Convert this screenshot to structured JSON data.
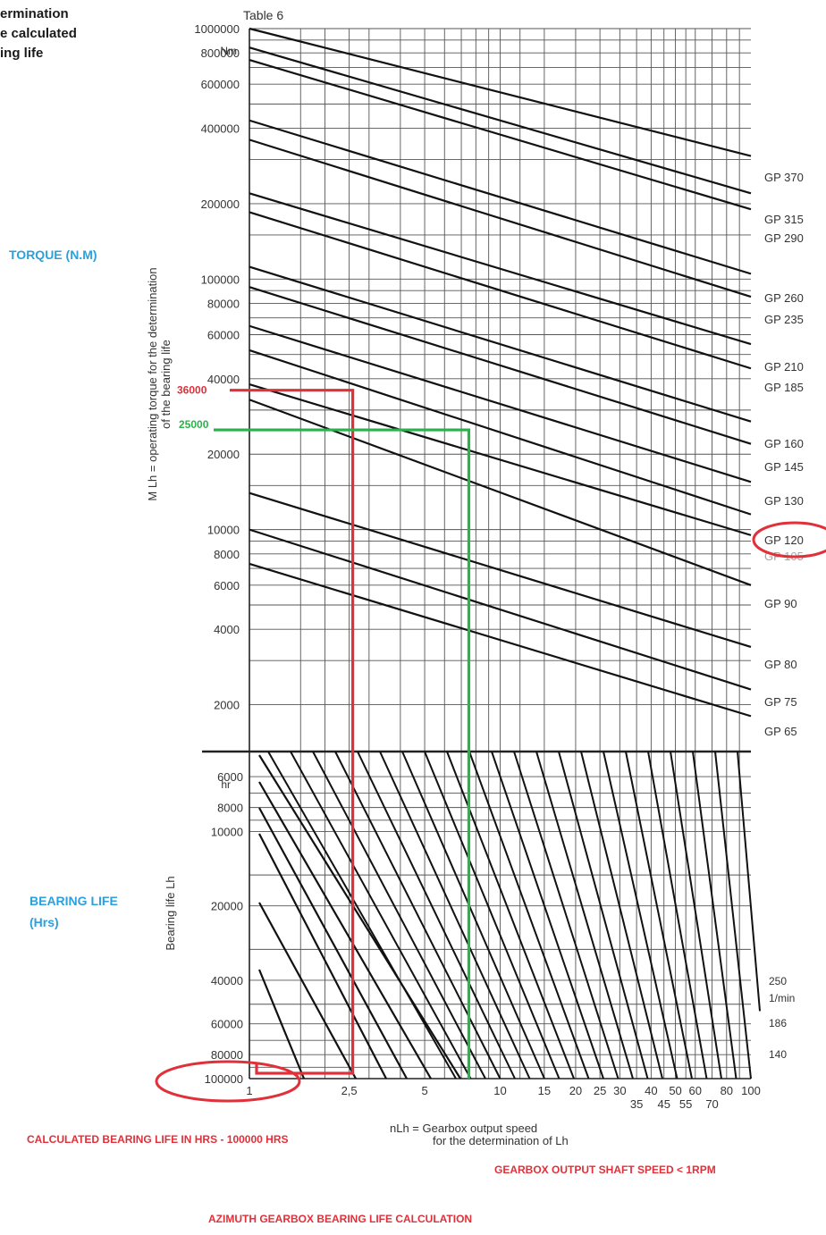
{
  "header_lines": [
    "ermination",
    "e calculated",
    "ing life"
  ],
  "chart_data": {
    "type": "line",
    "table_label": "Table 6",
    "top_panel": {
      "ylabel_lines": [
        "M Lh = operating torque for the determination",
        "of the bearing life"
      ],
      "y_unit": "Nm",
      "y_scale": "log",
      "ylim": [
        1300,
        1000000
      ],
      "yticks": [
        "1000000",
        "800000",
        "600000",
        "400000",
        "200000",
        "100000",
        "80000",
        "60000",
        "40000",
        "20000",
        "10000",
        "8000",
        "6000",
        "4000",
        "2000"
      ],
      "series": [
        "GP 370",
        "GP 315",
        "GP 290",
        "GP 260",
        "GP 235",
        "GP 210",
        "GP 185",
        "GP 160",
        "GP 145",
        "GP 130",
        "GP 120",
        "GP 105",
        "GP 90",
        "GP 80",
        "GP 75",
        "GP 65"
      ]
    },
    "bottom_panel": {
      "ylabel": "Bearing life Lh",
      "y_unit": "hr",
      "yticks": [
        "6000",
        "8000",
        "10000",
        "20000",
        "40000",
        "60000",
        "80000",
        "100000"
      ],
      "xlabel_lines": [
        "nLh = Gearbox output speed",
        "for the determination of Lh"
      ],
      "xticks_row1": [
        "1",
        "2,5",
        "5",
        "10",
        "15",
        "20",
        "25",
        "30",
        "40",
        "50",
        "60",
        "80",
        "100"
      ],
      "xticks_row2": [
        "35",
        "45",
        "55",
        "70"
      ],
      "speed_labels": [
        "250",
        "1/min",
        "186",
        "140"
      ]
    },
    "annotations": {
      "red_torque": "36000",
      "green_torque": "25000",
      "red_speed": 2.5,
      "green_speed": 7.5,
      "red_life_hours": 100000,
      "circled_model": "GP 120",
      "circled_life": "100000"
    }
  },
  "side_labels": {
    "torque": "TORQUE (N.M)",
    "bearing_line1": "BEARING LIFE",
    "bearing_line2": "(Hrs)"
  },
  "notes": {
    "calculated": "CALCULATED BEARING LIFE IN HRS - 100000 HRS",
    "speed": "GEARBOX OUTPUT SHAFT SPEED < 1RPM",
    "title": "AZIMUTH GEARBOX BEARING LIFE CALCULATION"
  },
  "colors": {
    "red": "#e0303a",
    "green": "#2bb24c",
    "blue": "#2ca0dc"
  }
}
